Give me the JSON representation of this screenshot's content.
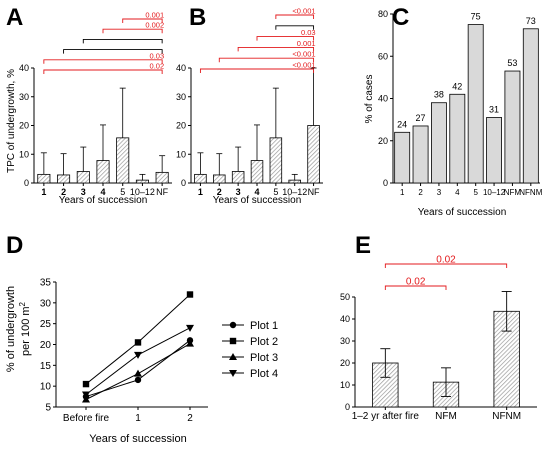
{
  "colors": {
    "sig": "#e31a1c",
    "bracket_black": "#000000",
    "bar_fill": "#d9d9d9",
    "axis": "#000000"
  },
  "chart_data": [
    {
      "panel": "A",
      "type": "bar",
      "ylabel": "TPC of undergrowth, %",
      "xlabel": "Years of succession",
      "ylim": [
        0,
        40
      ],
      "yticks": [
        "0",
        "10",
        "20",
        "30",
        "40"
      ],
      "categories": [
        "1",
        "2",
        "3",
        "4",
        "5",
        "10–12",
        "NF"
      ],
      "values": [
        3.0,
        2.8,
        4.0,
        7.8,
        15.7,
        1.0,
        3.7
      ],
      "err_high": [
        10.5,
        10.2,
        12.5,
        20.2,
        33.0,
        3.0,
        9.5
      ],
      "brackets": [
        {
          "label": "0.001",
          "color": "sig",
          "from": 4,
          "to": 6
        },
        {
          "label": "0.002",
          "color": "sig",
          "from": 3,
          "to": 6
        },
        {
          "label": "",
          "color": "bracket_black",
          "from": 2,
          "to": 6
        },
        {
          "label": "",
          "color": "bracket_black",
          "from": 1,
          "to": 6
        },
        {
          "label": "0.03",
          "color": "sig",
          "from": 0,
          "to": 6
        },
        {
          "label": "0.02",
          "color": "sig",
          "from": 0,
          "to": 6
        }
      ]
    },
    {
      "panel": "B",
      "type": "bar",
      "ylabel": "",
      "xlabel": "Years of succession",
      "ylim": [
        0,
        40
      ],
      "yticks": [
        "0",
        "10",
        "20",
        "30",
        "40"
      ],
      "categories": [
        "1",
        "2",
        "3",
        "4",
        "5",
        "10–12",
        "NF"
      ],
      "values": [
        3.0,
        2.8,
        4.0,
        7.8,
        15.7,
        1.0,
        20.0
      ],
      "err_high": [
        10.5,
        10.2,
        12.5,
        20.2,
        33.0,
        3.0,
        40.0
      ],
      "brackets": [
        {
          "label": "<0.001",
          "color": "sig",
          "from": 4,
          "to": 6
        },
        {
          "label": "",
          "color": "bracket_black",
          "from": 4,
          "to": 6
        },
        {
          "label": "0.03",
          "color": "sig",
          "from": 3,
          "to": 6
        },
        {
          "label": "0.001",
          "color": "sig",
          "from": 2,
          "to": 6
        },
        {
          "label": "<0.001",
          "color": "sig",
          "from": 1,
          "to": 6
        },
        {
          "label": "<0.001",
          "color": "sig",
          "from": 0,
          "to": 6
        }
      ]
    },
    {
      "panel": "C",
      "type": "bar",
      "ylabel": "% of cases",
      "xlabel": "Years of succession",
      "ylim": [
        0,
        80
      ],
      "yticks": [
        "0",
        "20",
        "40",
        "60",
        "80"
      ],
      "categories": [
        "1",
        "2",
        "3",
        "4",
        "5",
        "10–12",
        "NFM",
        "NFNM"
      ],
      "values": [
        24,
        27,
        38,
        42,
        75,
        31,
        53,
        73
      ],
      "data_labels": [
        "24",
        "27",
        "38",
        "42",
        "75",
        "31",
        "53",
        "73"
      ]
    },
    {
      "panel": "D",
      "type": "line",
      "ylabel": "% of undergrowth per 100 m²",
      "xlabel": "Years of succession",
      "ylim": [
        5,
        35
      ],
      "yticks": [
        "5",
        "10",
        "15",
        "20",
        "25",
        "30",
        "35"
      ],
      "categories": [
        "Before fire",
        "1",
        "2"
      ],
      "series": [
        {
          "name": "Plot 1",
          "marker": "circle",
          "values": [
            7.5,
            11.5,
            21.0
          ]
        },
        {
          "name": "Plot 2",
          "marker": "square",
          "values": [
            10.5,
            20.5,
            32.0
          ]
        },
        {
          "name": "Plot 3",
          "marker": "triangle-up",
          "values": [
            6.8,
            13.0,
            20.2
          ]
        },
        {
          "name": "Plot 4",
          "marker": "triangle-down",
          "values": [
            8.0,
            17.5,
            24.0
          ]
        }
      ]
    },
    {
      "panel": "E",
      "type": "bar",
      "ylabel": "",
      "xlabel": "",
      "ylim": [
        0,
        50
      ],
      "yticks": [
        "0",
        "10",
        "20",
        "30",
        "40",
        "50"
      ],
      "categories": [
        "1–2 yr after fire",
        "NFM",
        "NFNM"
      ],
      "values": [
        20.0,
        11.3,
        43.5
      ],
      "err": [
        6.5,
        6.5,
        9.0
      ],
      "brackets": [
        {
          "label": "0.02",
          "color": "sig",
          "from": 0,
          "to": 2
        },
        {
          "label": "0.02",
          "color": "sig",
          "from": 0,
          "to": 1
        }
      ]
    }
  ]
}
